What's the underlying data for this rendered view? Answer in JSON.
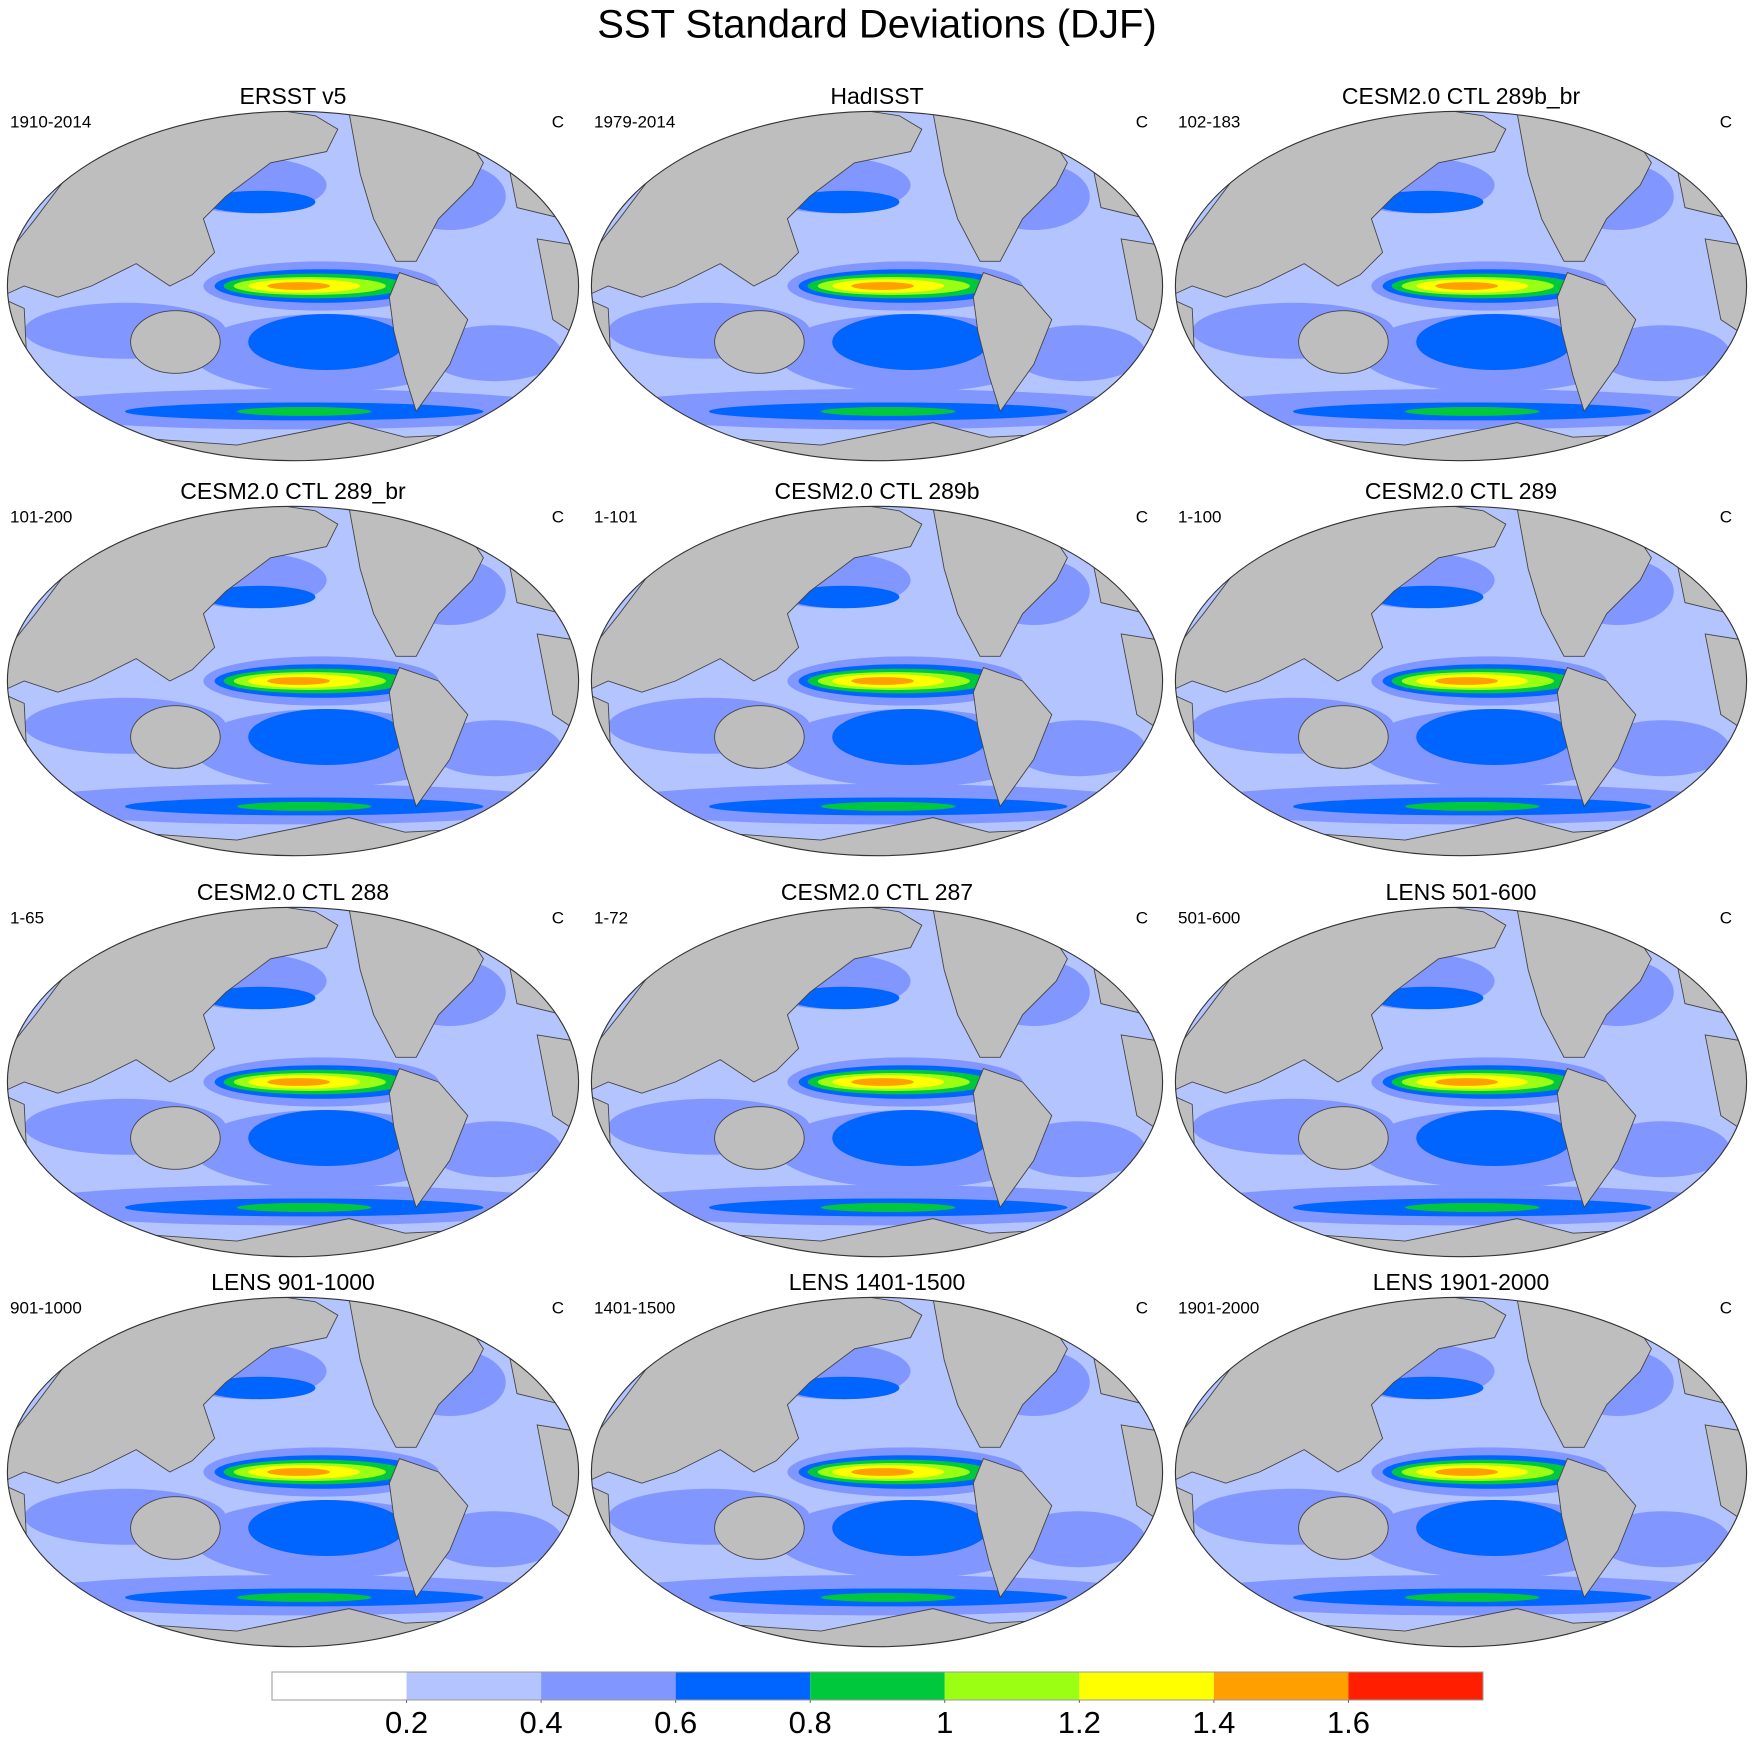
{
  "title": "SST Standard Deviations (DJF)",
  "panels": [
    {
      "title": "ERSST v5",
      "period": "1910-2014",
      "units": "C"
    },
    {
      "title": "HadISST",
      "period": "1979-2014",
      "units": "C"
    },
    {
      "title": "CESM2.0 CTL 289b_br",
      "period": "102-183",
      "units": "C"
    },
    {
      "title": "CESM2.0 CTL 289_br",
      "period": "101-200",
      "units": "C"
    },
    {
      "title": "CESM2.0 CTL 289b",
      "period": "1-101",
      "units": "C"
    },
    {
      "title": "CESM2.0 CTL 289",
      "period": "1-100",
      "units": "C"
    },
    {
      "title": "CESM2.0 CTL 288",
      "period": "1-65",
      "units": "C"
    },
    {
      "title": "CESM2.0 CTL 287",
      "period": "1-72",
      "units": "C"
    },
    {
      "title": "LENS 501-600",
      "period": "501-600",
      "units": "C"
    },
    {
      "title": "LENS 901-1000",
      "period": "901-1000",
      "units": "C"
    },
    {
      "title": "LENS 1401-1500",
      "period": "1401-1500",
      "units": "C"
    },
    {
      "title": "LENS 1901-2000",
      "period": "1901-2000",
      "units": "C"
    }
  ],
  "colorbar": {
    "colors": [
      "#ffffff",
      "#b4c4ff",
      "#8296ff",
      "#0064ff",
      "#00c83c",
      "#9bff14",
      "#ffff00",
      "#ffa000",
      "#ff1e00"
    ],
    "ticks": [
      0.2,
      0.4,
      0.6,
      0.8,
      1,
      1.2,
      1.4,
      1.6
    ]
  }
}
